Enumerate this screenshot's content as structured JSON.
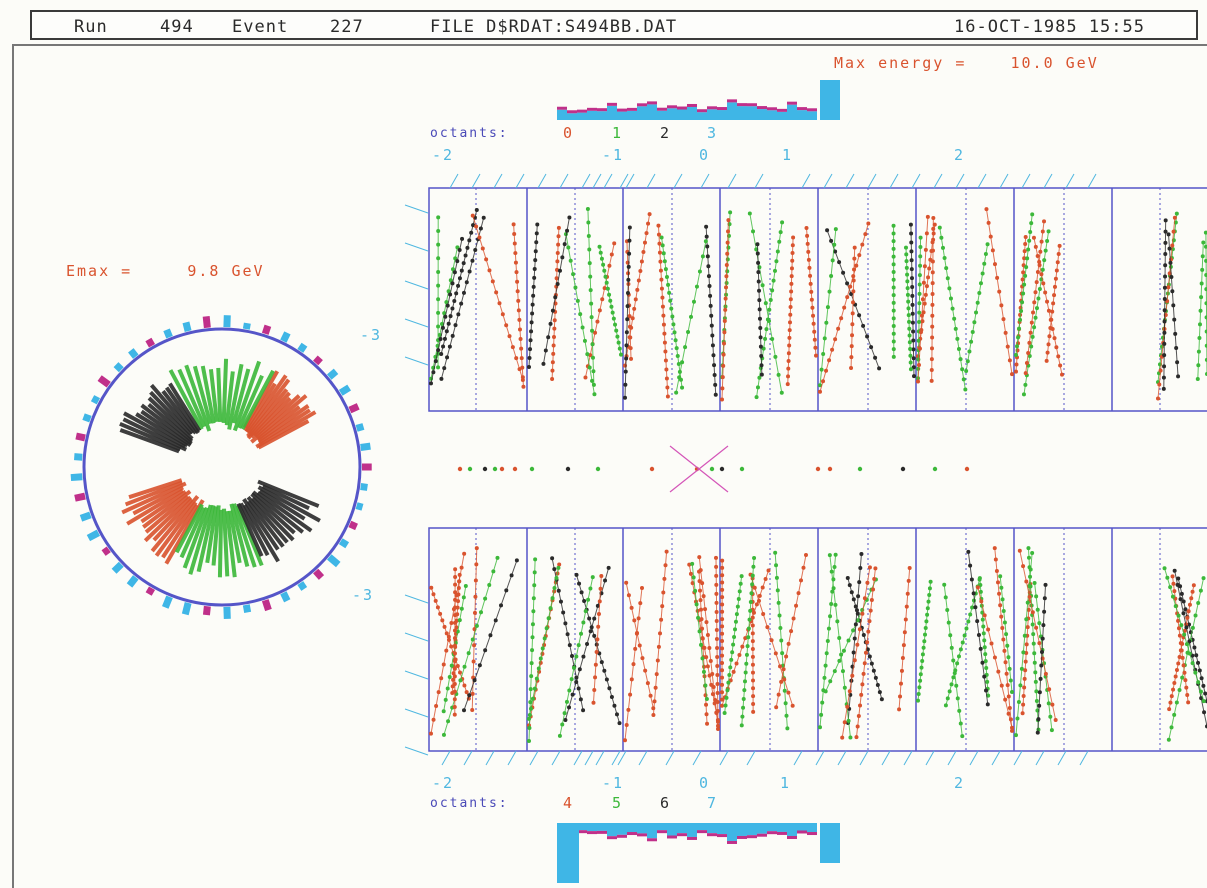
{
  "header": {
    "run_label": "Run",
    "run": "494",
    "event_label": "Event",
    "event": "227",
    "file": "FILE D$RDAT:S494BB.DAT",
    "datetime": "16-OCT-1985 15:55"
  },
  "max_energy": "Max energy =    10.0 GeV",
  "emax": "Emax =     9.8 GeV",
  "octants_upper": {
    "label": "octants:",
    "numbers": [
      "0",
      "1",
      "2",
      "3"
    ]
  },
  "octants_lower": {
    "label": "octants:",
    "numbers": [
      "4",
      "5",
      "6",
      "7"
    ]
  },
  "scale_labels": {
    "upper": [
      "-2",
      "-1",
      "0",
      "1",
      "2"
    ],
    "lower": [
      "-2",
      "-1",
      "0",
      "1",
      "2"
    ],
    "side_upper": "-3",
    "side_lower": "-3"
  },
  "colors": {
    "octant0": "#d9532e",
    "octant1": "#3cb83a",
    "octant2": "#2a2a2a",
    "octant3": "#4fb7e0",
    "frame": "#5555c8",
    "energy_bar": "#3fb6e6",
    "energy_bar2": "#c0308a",
    "label_orange": "#d9532e",
    "label_blue": "#4a4ab8"
  }
}
